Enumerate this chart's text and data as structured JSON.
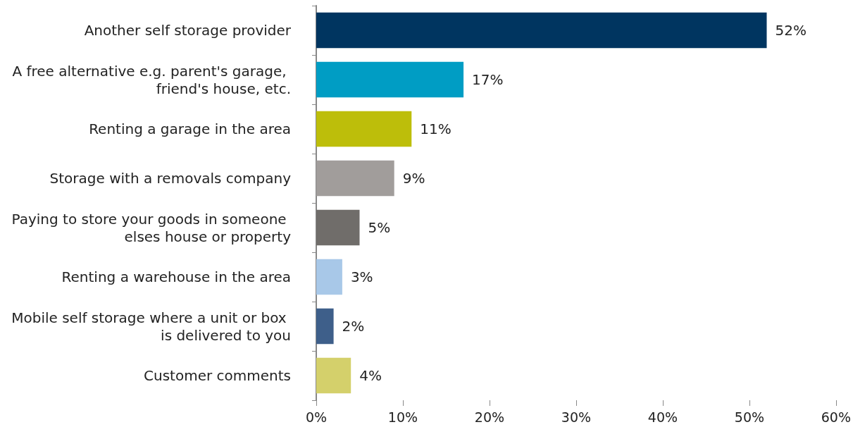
{
  "chart_data": {
    "type": "bar",
    "orientation": "horizontal",
    "categories": [
      "Another self storage provider",
      "A free alternative e.g. parent's garage, friend's house, etc.",
      "Renting a garage in the area",
      "Storage with a removals company",
      "Paying to store your goods in someone elses house or property",
      "Renting a warehouse in the area",
      "Mobile self storage where a unit or box is delivered to you",
      "Customer comments"
    ],
    "values": [
      52,
      17,
      11,
      9,
      5,
      3,
      2,
      4
    ],
    "colors": [
      "#003560",
      "#009dc4",
      "#bdbe0a",
      "#a19d9b",
      "#706d6a",
      "#a8c8e8",
      "#3e5f8a",
      "#d4d06b"
    ],
    "value_labels": [
      "52%",
      "17%",
      "11%",
      "9%",
      "5%",
      "3%",
      "2%",
      "4%"
    ],
    "xlim": [
      0,
      60
    ],
    "xticks": [
      {
        "value": 0,
        "label": "0%"
      },
      {
        "value": 10,
        "label": "10%"
      },
      {
        "value": 20,
        "label": "20%"
      },
      {
        "value": 30,
        "label": "30%"
      },
      {
        "value": 40,
        "label": "40%"
      },
      {
        "value": 50,
        "label": "50%"
      },
      {
        "value": 60,
        "label": "60%"
      }
    ],
    "grid": false
  }
}
